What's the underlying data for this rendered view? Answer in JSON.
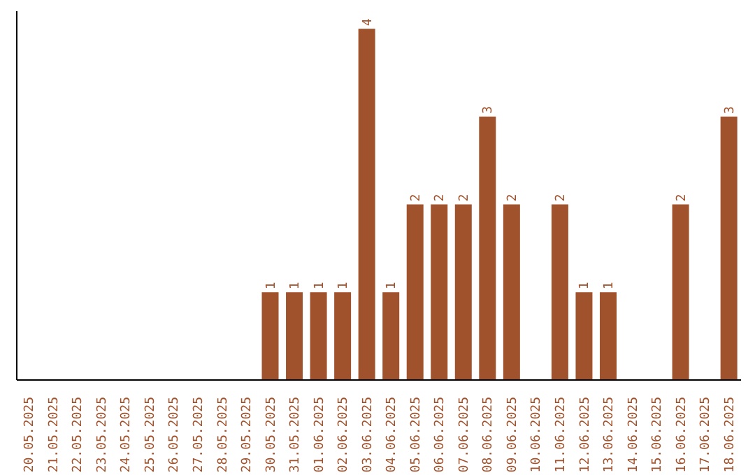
{
  "chart_data": {
    "type": "bar",
    "categories": [
      "20.05.2025",
      "21.05.2025",
      "22.05.2025",
      "23.05.2025",
      "24.05.2025",
      "25.05.2025",
      "26.05.2025",
      "27.05.2025",
      "28.05.2025",
      "29.05.2025",
      "30.05.2025",
      "31.05.2025",
      "01.06.2025",
      "02.06.2025",
      "03.06.2025",
      "04.06.2025",
      "05.06.2025",
      "06.06.2025",
      "07.06.2025",
      "08.06.2025",
      "09.06.2025",
      "10.06.2025",
      "11.06.2025",
      "12.06.2025",
      "13.06.2025",
      "14.06.2025",
      "15.06.2025",
      "16.06.2025",
      "17.06.2025",
      "18.06.2025"
    ],
    "values": [
      0,
      0,
      0,
      0,
      0,
      0,
      0,
      0,
      0,
      0,
      1,
      1,
      1,
      1,
      4,
      1,
      2,
      2,
      2,
      3,
      2,
      0,
      2,
      1,
      1,
      0,
      0,
      2,
      0,
      3
    ],
    "value_labels": [
      null,
      null,
      null,
      null,
      null,
      null,
      null,
      null,
      null,
      null,
      "1",
      "1",
      "1",
      "1",
      "4",
      "1",
      "2",
      "2",
      "2",
      "3",
      "2",
      null,
      "2",
      "1",
      "1",
      null,
      null,
      "2",
      null,
      "3"
    ],
    "color": "#a0522d",
    "grid": false,
    "legend": false
  }
}
